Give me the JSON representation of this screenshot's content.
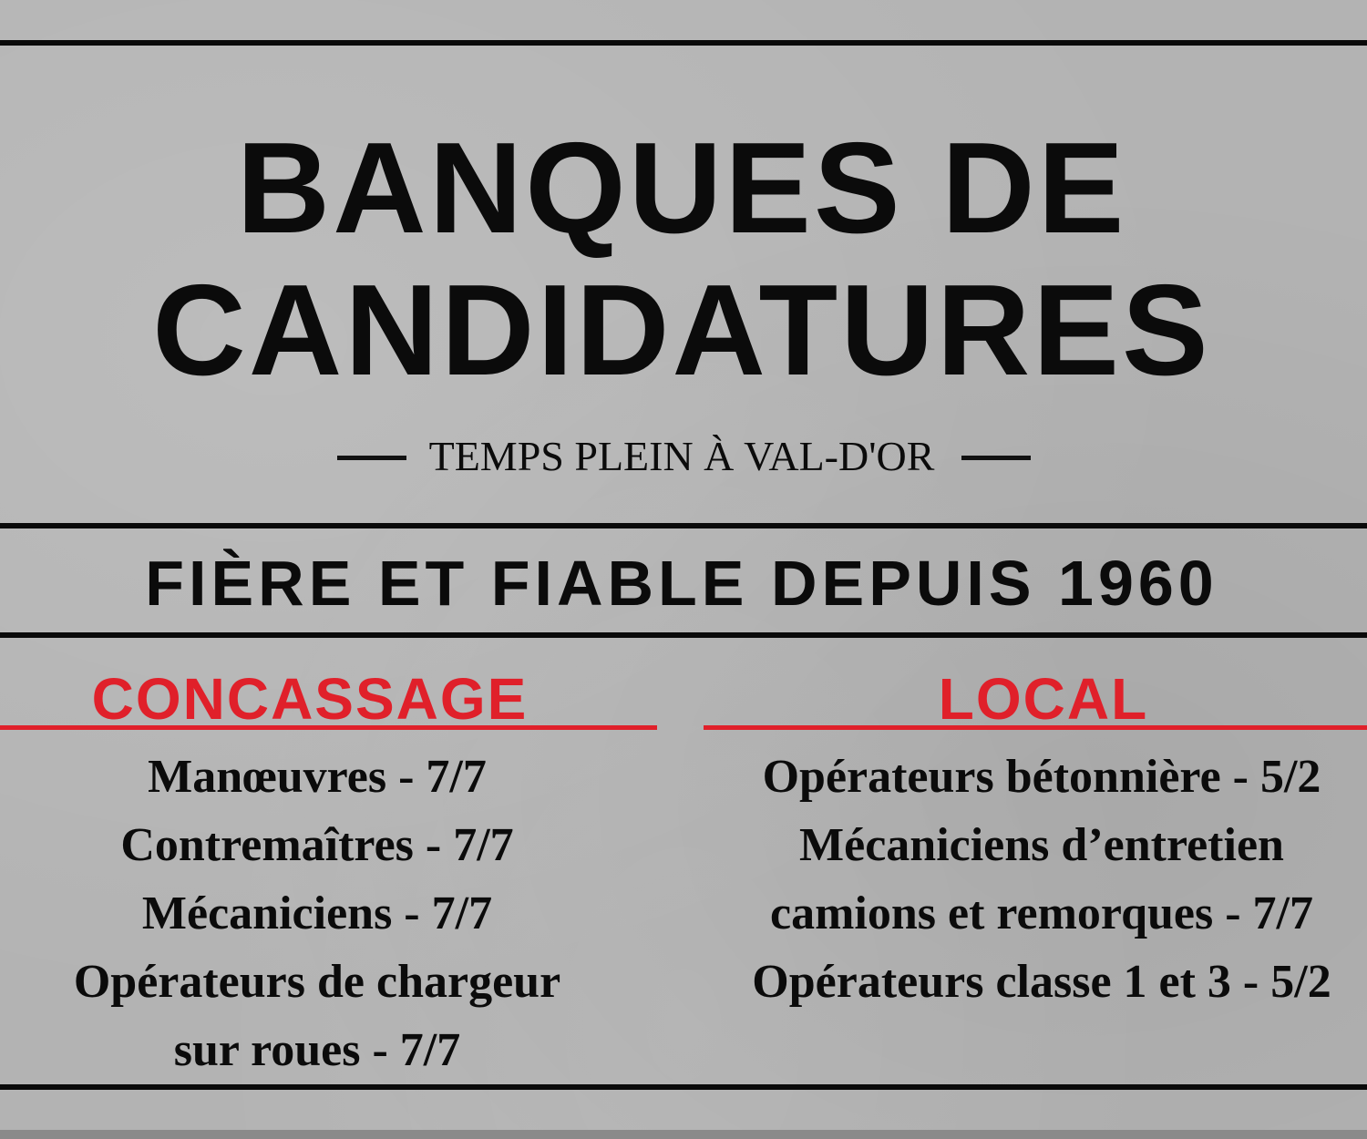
{
  "title_line1": "BANQUES DE",
  "title_line2": "CANDIDATURES",
  "subtitle": "TEMPS PLEIN À VAL-D'OR",
  "slogan": "FIÈRE ET FIABLE DEPUIS 1960",
  "colors": {
    "accent": "#e0202a",
    "background": "#b3b3b3",
    "text": "#0b0b0b"
  },
  "columns": [
    {
      "heading": "CONCASSAGE",
      "items": [
        "Manœuvres - 7/7",
        "Contremaîtres - 7/7",
        "Mécaniciens - 7/7",
        "Opérateurs de chargeur",
        "sur roues - 7/7"
      ]
    },
    {
      "heading": "LOCAL",
      "items": [
        "Opérateurs bétonnière - 5/2",
        "Mécaniciens d’entretien",
        "camions et remorques - 7/7",
        "Opérateurs classe 1 et 3 - 5/2"
      ]
    }
  ]
}
